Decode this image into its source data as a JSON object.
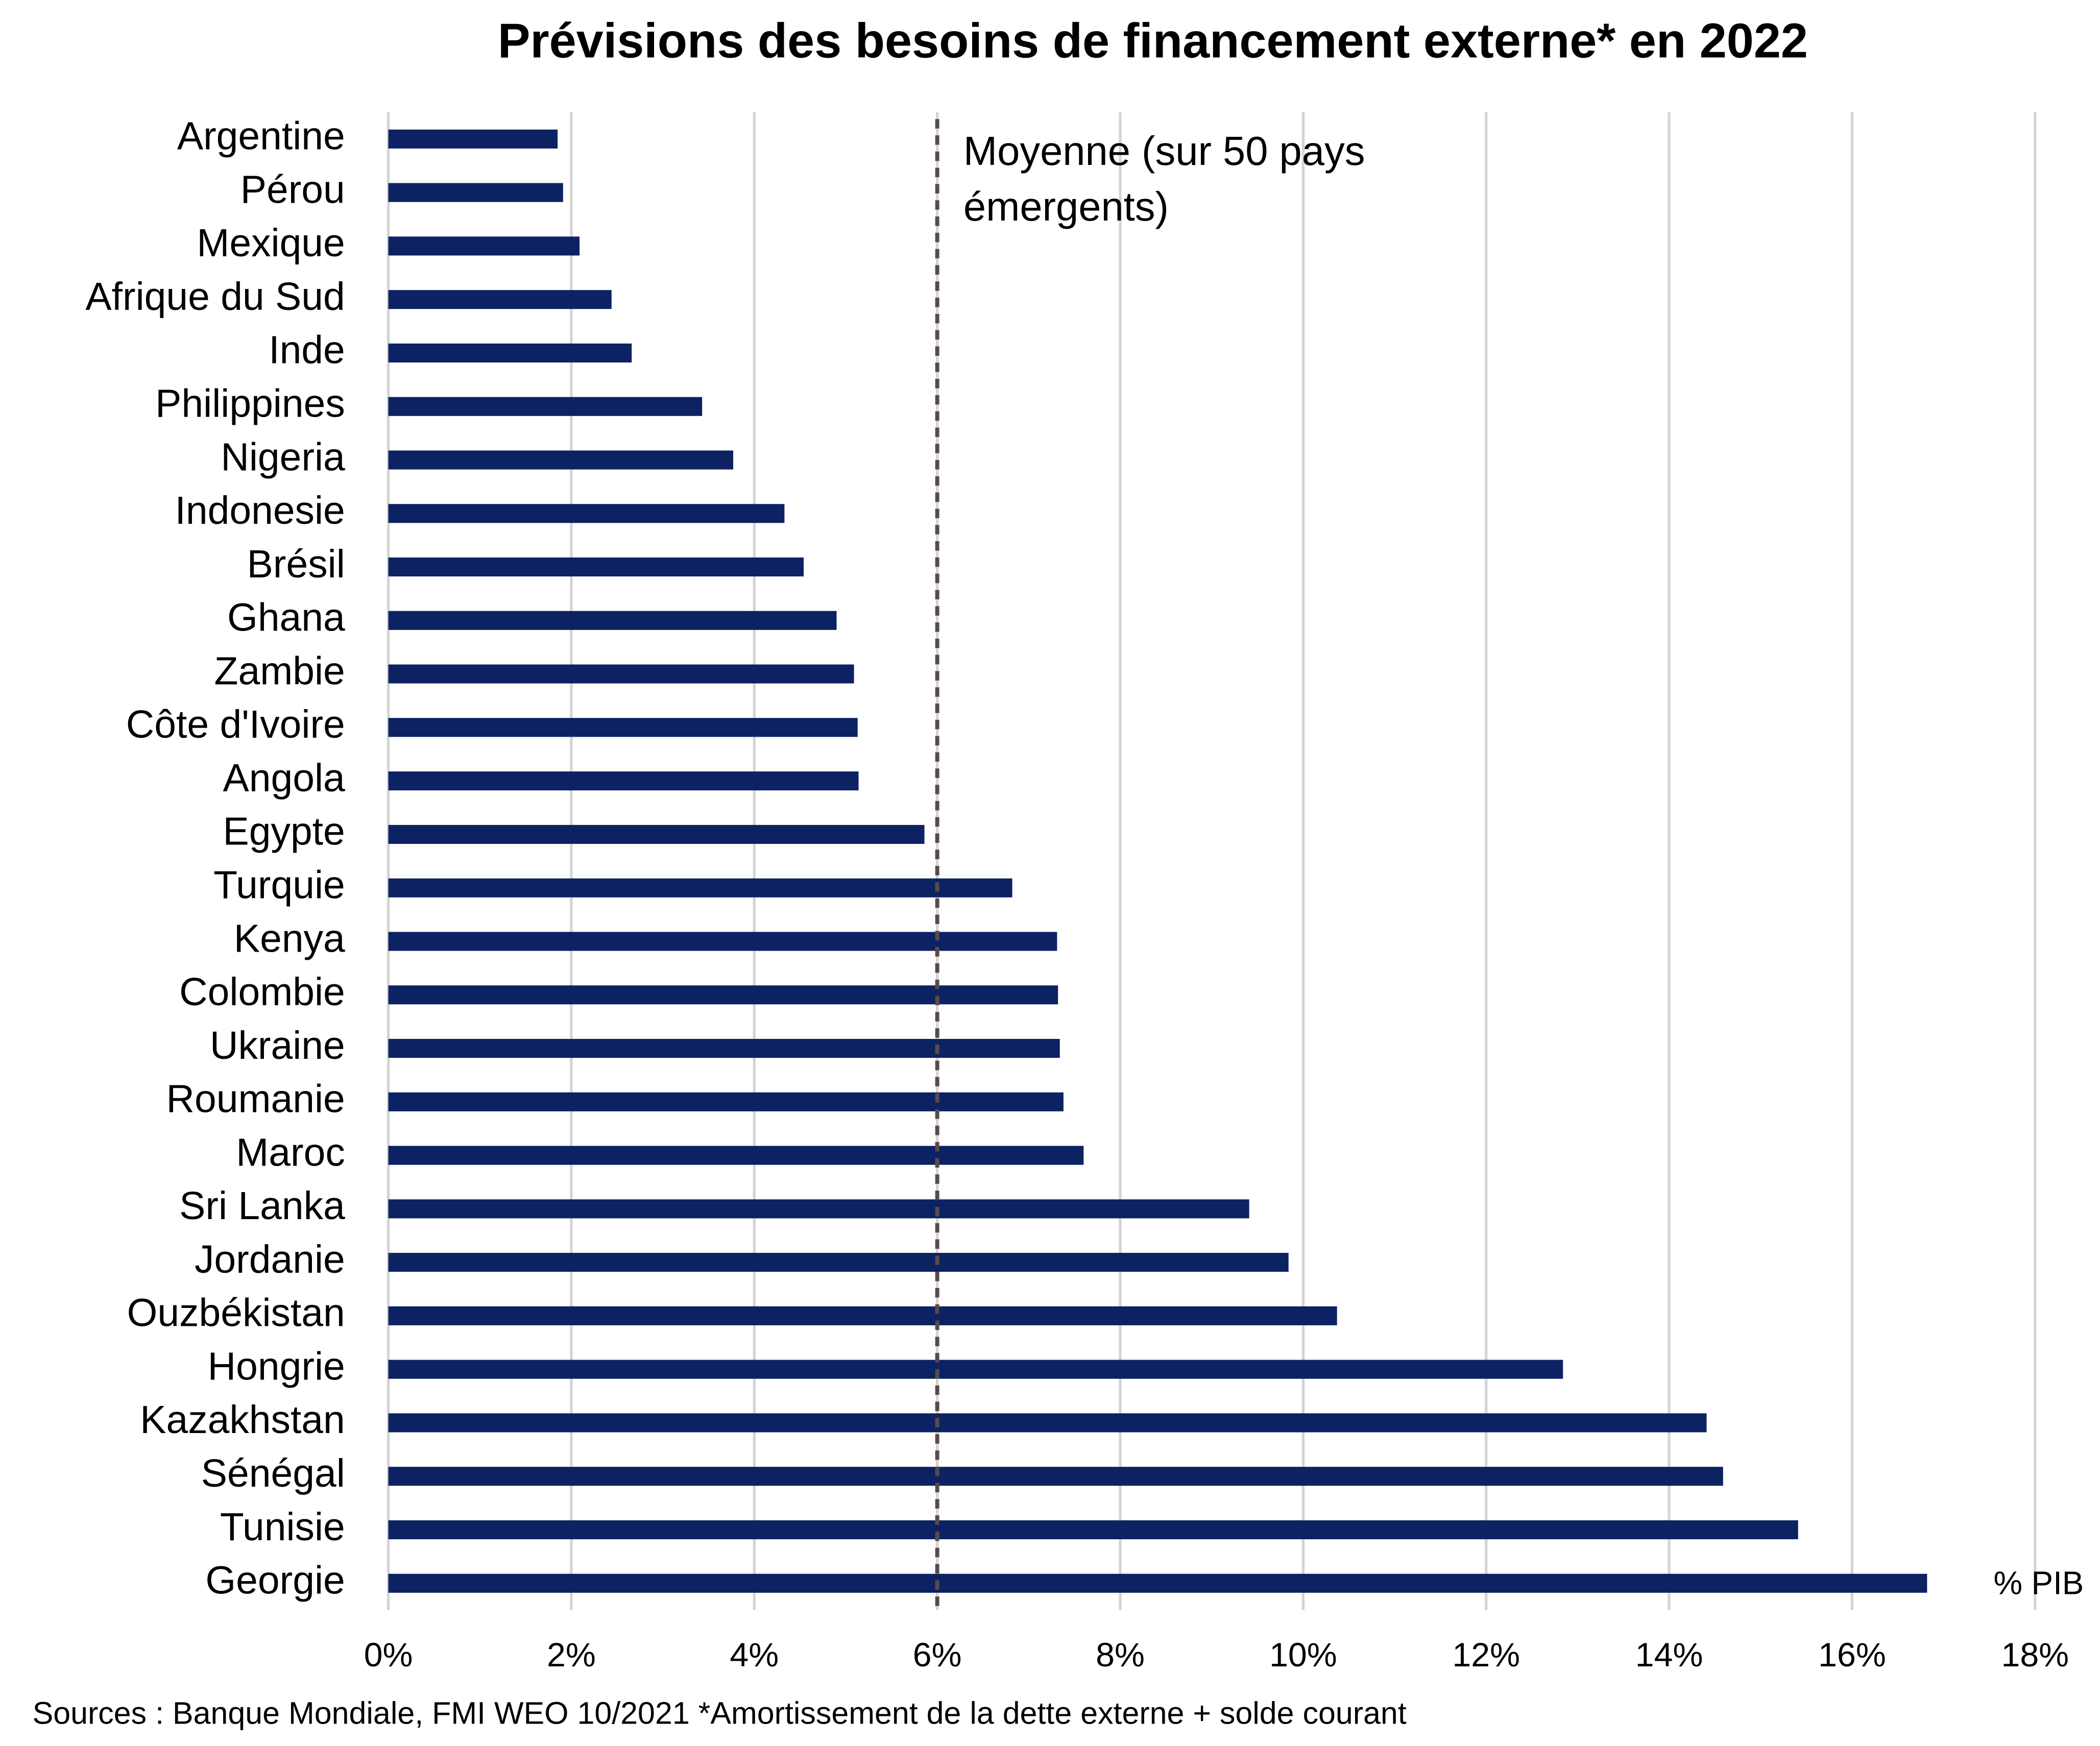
{
  "chart_data": {
    "type": "hbar",
    "title": "Prévisions des besoins de financement externe* en 2022",
    "categories": [
      "Argentine",
      "Pérou",
      "Mexique",
      "Afrique du Sud",
      "Inde",
      "Philippines",
      "Nigeria",
      "Indonesie",
      "Brésil",
      "Ghana",
      "Zambie",
      "Côte d'Ivoire",
      "Angola",
      "Egypte",
      "Turquie",
      "Kenya",
      "Colombie",
      "Ukraine",
      "Roumanie",
      "Maroc",
      "Sri Lanka",
      "Jordanie",
      "Ouzbékistan",
      "Hongrie",
      "Kazakhstan",
      "Sénégal",
      "Tunisie",
      "Georgie"
    ],
    "values": [
      1.85,
      1.91,
      2.09,
      2.44,
      2.66,
      3.43,
      3.77,
      4.33,
      4.54,
      4.9,
      5.09,
      5.13,
      5.14,
      5.86,
      6.82,
      7.31,
      7.32,
      7.34,
      7.38,
      7.6,
      9.41,
      9.84,
      10.37,
      12.84,
      14.41,
      14.59,
      15.41,
      16.82
    ],
    "color": "#0c2262",
    "xlim": [
      0,
      18
    ],
    "xticks": [
      {
        "value": 0,
        "label": "0%"
      },
      {
        "value": 2,
        "label": "2%"
      },
      {
        "value": 4,
        "label": "4%"
      },
      {
        "value": 6,
        "label": "6%"
      },
      {
        "value": 8,
        "label": "8%"
      },
      {
        "value": 10,
        "label": "10%"
      },
      {
        "value": 12,
        "label": "12%"
      },
      {
        "value": 14,
        "label": "14%"
      },
      {
        "value": 16,
        "label": "16%"
      },
      {
        "value": 18,
        "label": "18%"
      }
    ],
    "grid": true,
    "reference_line": {
      "value": 6,
      "label": [
        "Moyenne (sur 50 pays",
        "émergents)"
      ]
    },
    "unit_label": "% PIB",
    "source": "Sources : Banque Mondiale, FMI WEO 10/2021  *Amortissement de la dette externe + solde courant"
  }
}
